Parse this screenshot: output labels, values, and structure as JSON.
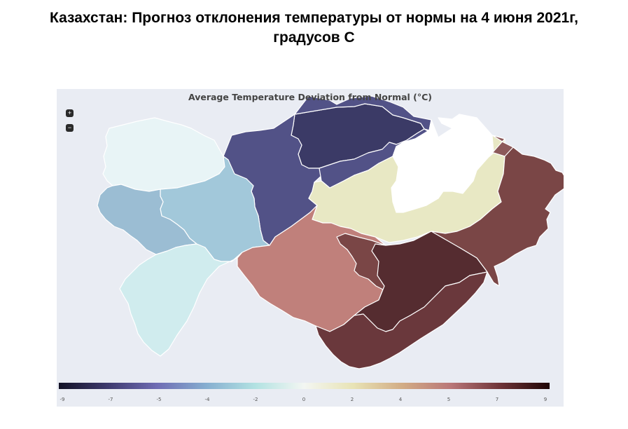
{
  "page": {
    "title_line1": "Казахстан: Прогноз отклонения температуры от нормы на 4 июня 2021г,",
    "title_line2": "градусов С"
  },
  "map": {
    "title": "Average Temperature Deviation from Normal (°C)",
    "zoom_in_label": "+",
    "zoom_out_label": "−",
    "colorbar_ticks": [
      "-9",
      "-7",
      "-5",
      "-4",
      "-2",
      "0",
      "2",
      "4",
      "5",
      "7",
      "9"
    ],
    "colorscale": [
      "#131226",
      "#3e3a6e",
      "#6f6cb4",
      "#86aed0",
      "#b2e2e2",
      "#f3f6f2",
      "#e8e3b5",
      "#d2ac85",
      "#b97678",
      "#6e3438",
      "#1f0505"
    ]
  },
  "regions": [
    {
      "name": "north-kazakhstan",
      "color": "#3b3a66"
    },
    {
      "name": "kostanay",
      "color": "#525287"
    },
    {
      "name": "akmola",
      "color": "#525287"
    },
    {
      "name": "pavlodar",
      "color": "#ffffff"
    },
    {
      "name": "west-kazakhstan",
      "color": "#e8f4f6"
    },
    {
      "name": "aktobe",
      "color": "#a2c8da"
    },
    {
      "name": "atyrau",
      "color": "#9bbdd3"
    },
    {
      "name": "mangystau",
      "color": "#d0ecee"
    },
    {
      "name": "karaganda",
      "color": "#e8e8c4"
    },
    {
      "name": "east-kazakhstan",
      "color": "#8c5959"
    },
    {
      "name": "kyzylorda",
      "color": "#c0807b"
    },
    {
      "name": "almaty",
      "color": "#7a4646"
    },
    {
      "name": "zhambyl",
      "color": "#552c30"
    },
    {
      "name": "turkistan",
      "color": "#6a383c"
    }
  ]
}
